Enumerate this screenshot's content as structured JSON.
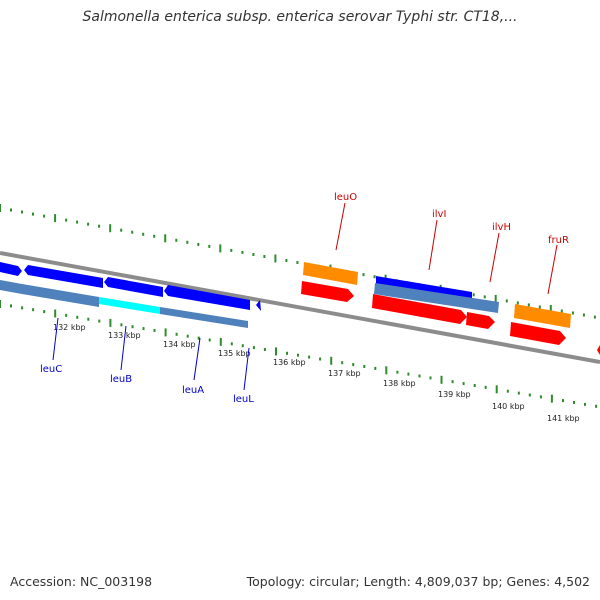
{
  "title": "Salmonella enterica subsp. enterica serovar Typhi str. CT18,...",
  "footer": {
    "accession": "Accession: NC_003198",
    "summary": "Topology: circular; Length: 4,809,037 bp; Genes: 4,502"
  },
  "colors": {
    "backbone": "#8c8c8c",
    "tick": "#2e8b2e",
    "forward_gene": "#ff0000",
    "forward_outline": "#ff8c00",
    "reverse_gene": "#0000ff",
    "reverse_cds": "#4f81bd",
    "highlight": "#00ffff",
    "label_red": "#cc0000",
    "label_blue": "#0000cc"
  },
  "scale": {
    "labels": [
      "132 kbp",
      "133 kbp",
      "134 kbp",
      "135 kbp",
      "136 kbp",
      "137 kbp",
      "138 kbp",
      "139 kbp",
      "140 kbp",
      "141 kbp"
    ]
  },
  "genes": {
    "forward": [
      "leuO",
      "ilvI",
      "ilvH",
      "fruR"
    ],
    "reverse": [
      "leuC",
      "leuB",
      "leuA",
      "leuL"
    ]
  }
}
